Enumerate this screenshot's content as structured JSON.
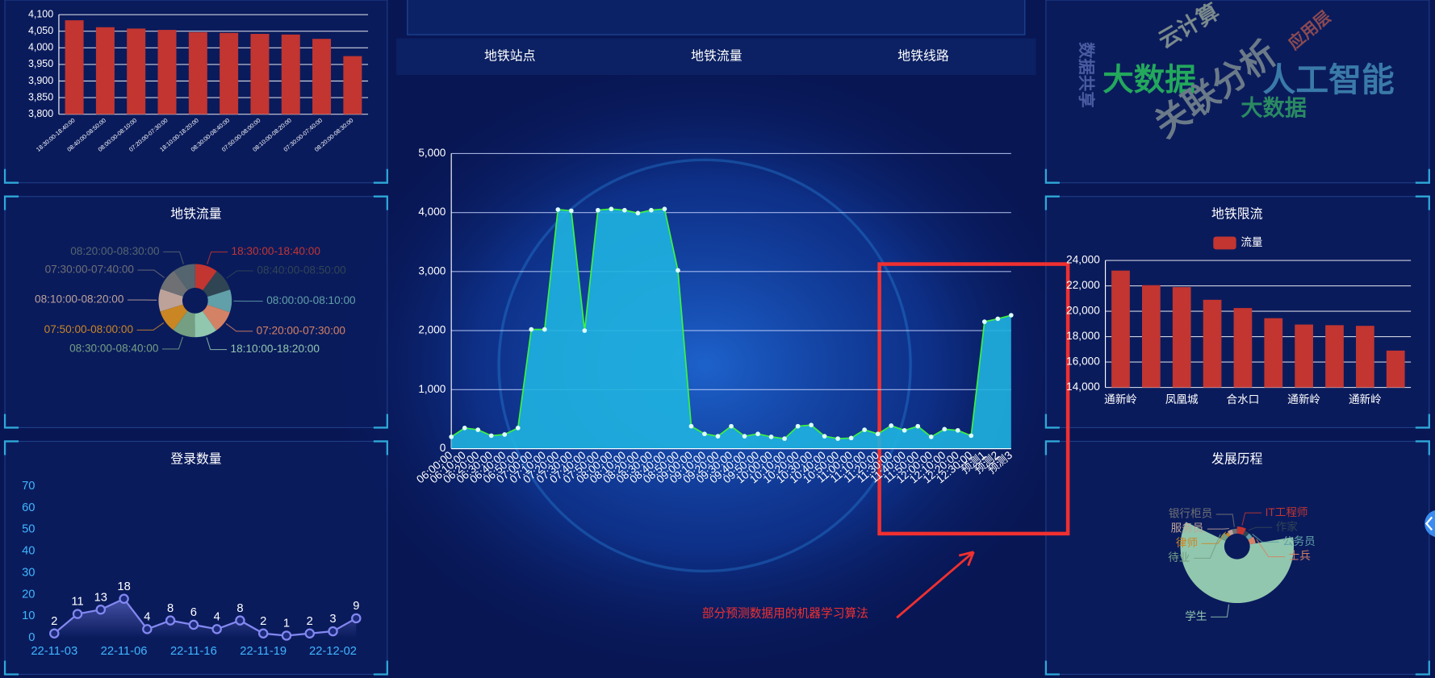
{
  "nav": [
    "地铁站点",
    "地铁流量",
    "地铁线路"
  ],
  "annotation": "部分预测数据用的机器学习算法",
  "word_cloud": [
    "云计算",
    "应用层",
    "数据共享",
    "大数据",
    "关联分析",
    "人工智能",
    "大数据"
  ],
  "chart_data": [
    {
      "type": "bar",
      "color": "#c23531",
      "categories": [
        "18:30:00-18:40:00",
        "08:40:00-08:50:00",
        "08:00:00-08:10:00",
        "07:20:00-07:30:00",
        "18:10:00-18:20:00",
        "08:30:00-08:40:00",
        "07:50:00-08:00:00",
        "08:10:00-08:20:00",
        "07:30:00-07:40:00",
        "08:20:00-08:30:00"
      ],
      "values": [
        4083,
        4062,
        4058,
        4054,
        4047,
        4045,
        4042,
        4040,
        4027,
        3975
      ],
      "ylim": [
        3800,
        4100
      ],
      "yticks": [
        {
          "value": 3800,
          "label": "3,800"
        },
        {
          "value": 3850,
          "label": "3,850"
        },
        {
          "value": 3900,
          "label": "3,900"
        },
        {
          "value": 3950,
          "label": "3,950"
        },
        {
          "value": 4000,
          "label": "4,000"
        },
        {
          "value": 4050,
          "label": "4,050"
        },
        {
          "value": 4100,
          "label": "4,100"
        }
      ],
      "grid": true
    },
    {
      "type": "pie",
      "title": "地铁流量",
      "categories": [
        "18:30:00-18:40:00",
        "08:40:00-08:50:00",
        "08:00:00-08:10:00",
        "07:20:00-07:30:00",
        "18:10:00-18:20:00",
        "08:30:00-08:40:00",
        "07:50:00-08:00:00",
        "08:10:00-08:20:00",
        "07:30:00-07:40:00",
        "08:20:00-08:30:00"
      ],
      "values": [
        4083,
        4062,
        4058,
        4054,
        4047,
        4045,
        4042,
        4040,
        4027,
        3975
      ],
      "colors": [
        "#c23531",
        "#2f4554",
        "#61a0a8",
        "#d48265",
        "#91c7ae",
        "#749f83",
        "#ca8622",
        "#bda29a",
        "#6e7074",
        "#546570"
      ]
    },
    {
      "type": "line",
      "title": "登录数量",
      "color": "#8388f0",
      "categories": [
        "22-11-03",
        null,
        null,
        "22-11-06",
        null,
        null,
        "22-11-16",
        null,
        null,
        "22-11-19",
        null,
        null,
        "22-12-02",
        null
      ],
      "values": [
        2,
        11,
        13,
        18,
        4,
        8,
        6,
        4,
        8,
        2,
        1,
        2,
        3,
        9
      ],
      "ylim": [
        0,
        70
      ],
      "yticks": [
        0,
        10,
        20,
        30,
        40,
        50,
        60,
        70
      ]
    },
    {
      "type": "area",
      "color": "#1fb3e0",
      "line_color": "#3cf23c",
      "categories": [
        "06:00:00",
        "06:10:00",
        "06:20:00",
        "06:30:00",
        "06:40:00",
        "06:50:00",
        "07:00:00",
        "07:10:00",
        "07:20:00",
        "07:30:00",
        "07:40:00",
        "07:50:00",
        "08:00:00",
        "08:10:00",
        "08:20:00",
        "08:30:00",
        "08:40:00",
        "08:50:00",
        "09:00:00",
        "09:10:00",
        "09:20:00",
        "09:30:00",
        "09:40:00",
        "09:50:00",
        "10:00:00",
        "10:10:00",
        "10:20:00",
        "10:30:00",
        "10:40:00",
        "10:50:00",
        "11:00:00",
        "11:10:00",
        "11:20:00",
        "11:30:00",
        "11:40:00",
        "11:50:00",
        "12:00:00",
        "12:10:00",
        "12:20:00",
        "12:30:00",
        "预测1",
        "预测2",
        "预测3"
      ],
      "values": [
        200,
        350,
        320,
        220,
        240,
        350,
        2020,
        2020,
        4050,
        4030,
        2000,
        4040,
        4060,
        4040,
        3990,
        4040,
        4060,
        3020,
        380,
        250,
        210,
        380,
        210,
        250,
        200,
        170,
        380,
        400,
        210,
        170,
        180,
        320,
        250,
        390,
        310,
        380,
        200,
        330,
        310,
        220,
        2150,
        2200,
        2260
      ],
      "ylim": [
        0,
        5000
      ],
      "yticks": [
        0,
        {
          "value": 1000,
          "label": "1,000"
        },
        {
          "value": 2000,
          "label": "2,000"
        },
        {
          "value": 3000,
          "label": "3,000"
        },
        {
          "value": 4000,
          "label": "4,000"
        },
        {
          "value": 5000,
          "label": "5,000"
        }
      ],
      "grid": true
    },
    {
      "type": "bar",
      "title": "地铁限流",
      "categories": [
        "通新岭",
        null,
        "凤凰城",
        null,
        "合水口",
        null,
        "通新岭",
        null,
        "通新岭",
        null
      ],
      "series": [
        {
          "name": "流量",
          "color": "#c23531",
          "values": [
            23200,
            22050,
            21900,
            20900,
            20250,
            19450,
            18950,
            18900,
            18850,
            16900
          ]
        }
      ],
      "ylim": [
        14000,
        24000
      ],
      "yticks": [
        {
          "value": 14000,
          "label": "14,000"
        },
        {
          "value": 16000,
          "label": "16,000"
        },
        {
          "value": 18000,
          "label": "18,000"
        },
        {
          "value": 20000,
          "label": "20,000"
        },
        {
          "value": 22000,
          "label": "22,000"
        },
        {
          "value": 24000,
          "label": "24,000"
        }
      ],
      "grid": true
    },
    {
      "type": "rose",
      "title": "发展历程",
      "categories": [
        "IT工程师",
        "作家",
        "公务员",
        "士兵",
        "学生",
        "待业",
        "律师",
        "服务员",
        "银行柜员"
      ],
      "values": [
        5,
        3,
        3,
        4,
        40,
        4,
        2,
        3,
        3
      ],
      "colors": [
        "#c23531",
        "#2f4554",
        "#61a0a8",
        "#d48265",
        "#91c7ae",
        "#749f83",
        "#ca8622",
        "#bda29a",
        "#6e7074"
      ]
    }
  ]
}
